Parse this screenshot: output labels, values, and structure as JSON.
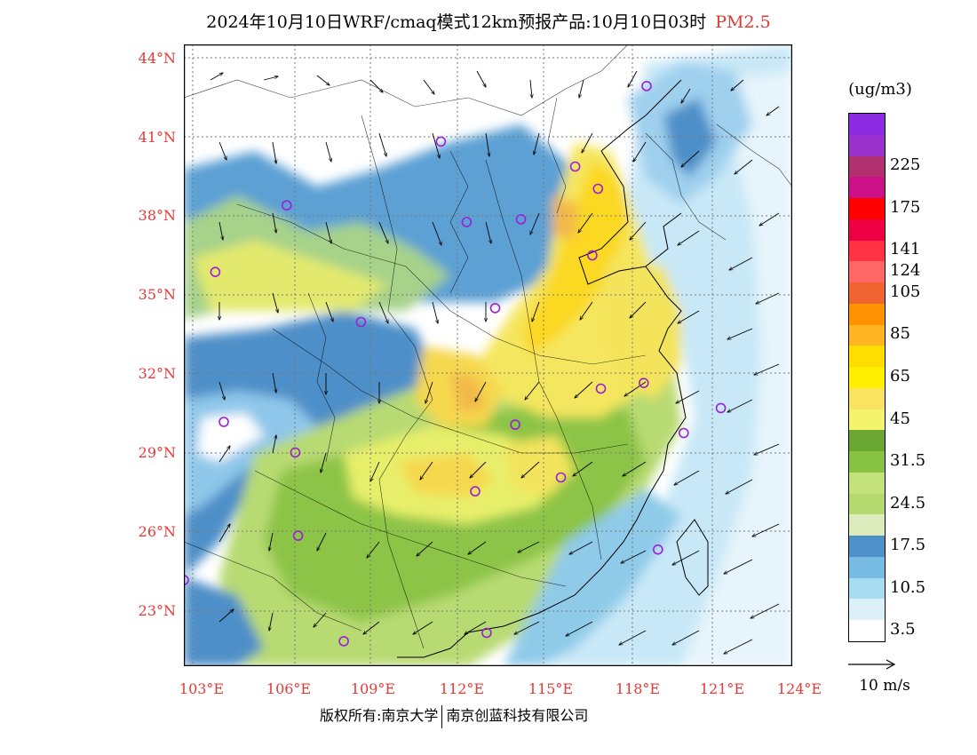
{
  "title": {
    "main": "2024年10月10日WRF/cmaq模式12km预报产品:10月10日03时",
    "species": "PM2.5"
  },
  "map": {
    "extent": {
      "lon": [
        102.7,
        124
      ],
      "lat": [
        21.9,
        44.3
      ]
    },
    "lat_labels": [
      "44°N",
      "41°N",
      "38°N",
      "35°N",
      "32°N",
      "29°N",
      "26°N",
      "23°N"
    ],
    "lat_values": [
      44,
      41,
      38,
      35,
      32,
      29,
      26,
      23
    ],
    "lon_labels": [
      "103°E",
      "106°E",
      "109°E",
      "112°E",
      "115°E",
      "118°E",
      "121°E",
      "124°E"
    ],
    "lon_values": [
      103,
      106,
      109,
      112,
      115,
      118,
      121,
      124
    ],
    "cities": [
      {
        "lon": 118.9,
        "lat": 42.8
      },
      {
        "lon": 116.4,
        "lat": 39.9
      },
      {
        "lon": 117.2,
        "lat": 39.1
      },
      {
        "lon": 114.5,
        "lat": 38.0
      },
      {
        "lon": 112.6,
        "lat": 37.9
      },
      {
        "lon": 111.7,
        "lat": 40.8
      },
      {
        "lon": 106.3,
        "lat": 38.5
      },
      {
        "lon": 103.8,
        "lat": 36.1
      },
      {
        "lon": 108.9,
        "lat": 34.3
      },
      {
        "lon": 113.6,
        "lat": 34.8
      },
      {
        "lon": 117.0,
        "lat": 36.7
      },
      {
        "lon": 117.3,
        "lat": 31.9
      },
      {
        "lon": 118.8,
        "lat": 32.1
      },
      {
        "lon": 121.5,
        "lat": 31.2
      },
      {
        "lon": 120.2,
        "lat": 30.3
      },
      {
        "lon": 114.3,
        "lat": 30.6
      },
      {
        "lon": 115.9,
        "lat": 28.7
      },
      {
        "lon": 112.9,
        "lat": 28.2
      },
      {
        "lon": 106.6,
        "lat": 29.6
      },
      {
        "lon": 104.1,
        "lat": 30.7
      },
      {
        "lon": 106.7,
        "lat": 26.6
      },
      {
        "lon": 102.7,
        "lat": 25.0
      },
      {
        "lon": 108.3,
        "lat": 22.8
      },
      {
        "lon": 113.3,
        "lat": 23.1
      },
      {
        "lon": 119.3,
        "lat": 26.1
      }
    ]
  },
  "legend": {
    "unit": "(ug/m3)",
    "colors": [
      "#ffffff",
      "#dcf0fa",
      "#a8dcf2",
      "#78bce6",
      "#4e90c8",
      "#dcebbb",
      "#b5d96e",
      "#c3e27c",
      "#88c243",
      "#6aa632",
      "#f3f46c",
      "#f8e45e",
      "#fff000",
      "#ffdd00",
      "#ffb522",
      "#ff9200",
      "#f06432",
      "#ff6666",
      "#ff3344",
      "#ee0044",
      "#ff0000",
      "#cc1188",
      "#b03070",
      "#9932cc",
      "#8a2be2"
    ],
    "labels": [
      {
        "text": "3.5",
        "index": 0
      },
      {
        "text": "10.5",
        "index": 2
      },
      {
        "text": "17.5",
        "index": 4
      },
      {
        "text": "24.5",
        "index": 6
      },
      {
        "text": "31.5",
        "index": 8
      },
      {
        "text": "45",
        "index": 10
      },
      {
        "text": "65",
        "index": 12
      },
      {
        "text": "85",
        "index": 14
      },
      {
        "text": "105",
        "index": 16
      },
      {
        "text": "124",
        "index": 17
      },
      {
        "text": "141",
        "index": 18
      },
      {
        "text": "175",
        "index": 20
      },
      {
        "text": "225",
        "index": 22
      }
    ]
  },
  "wind_reference": {
    "label": "10 m/s"
  },
  "footer": {
    "left": "版权所有:南京大学",
    "right": "南京创蓝科技有限公司"
  }
}
